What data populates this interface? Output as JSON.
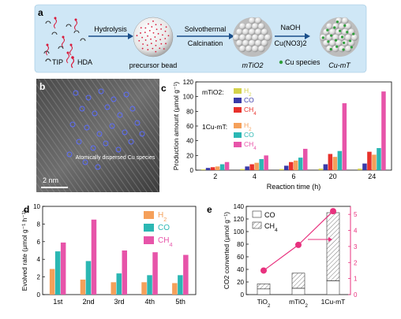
{
  "panel_a": {
    "letter": "a",
    "arrow1": "Hydrolysis",
    "arrow2_top": "Solvothermal",
    "arrow2_bottom": "Calcination",
    "arrow3_top": "NaOH",
    "arrow3_bottom": "Cu(NO3)2",
    "legend_tip": "TIP",
    "legend_hda": "HDA",
    "label_bead": "precursor bead",
    "label_mtio2": "mTiO2",
    "label_cu": "Cu species",
    "label_cumt": "Cu-mT",
    "colors": {
      "background": "#cfe7f6",
      "red_dots": "#d81b3c",
      "green_dots": "#2e9e3a"
    }
  },
  "panel_b": {
    "letter": "b",
    "annotation": "Atomically dispersed Cu species",
    "scale_bar": "2 nm"
  },
  "panel_c": {
    "letter": "c"
  },
  "panel_d": {
    "letter": "d"
  },
  "panel_e": {
    "letter": "e"
  },
  "chart_data": [
    {
      "id": "c",
      "type": "bar",
      "categories": [
        "2",
        "4",
        "6",
        "20",
        "24"
      ],
      "xlabel": "Reaction time (h)",
      "ylabel": "Production amount (μmol g⁻¹)",
      "ylim": [
        0,
        120
      ],
      "yticks": [
        0,
        20,
        40,
        60,
        80,
        100,
        120
      ],
      "legend_group1": "mTiO2:",
      "legend_group2": "1Cu-mT:",
      "series": [
        {
          "name": "H2",
          "group": "mTiO2",
          "color": "#d4d24a",
          "values": [
            1,
            1.5,
            1.5,
            2,
            2
          ]
        },
        {
          "name": "CO",
          "group": "mTiO2",
          "color": "#3a3aa8",
          "values": [
            3,
            5,
            6,
            8,
            9
          ]
        },
        {
          "name": "CH4",
          "group": "mTiO2",
          "color": "#e8312b",
          "values": [
            4,
            8,
            11,
            22,
            25
          ]
        },
        {
          "name": "H2",
          "group": "1Cu-mT",
          "color": "#f5a05a",
          "values": [
            5,
            10,
            13,
            18,
            21
          ]
        },
        {
          "name": "CO",
          "group": "1Cu-mT",
          "color": "#2bb7b3",
          "values": [
            8,
            15,
            17,
            26,
            30
          ]
        },
        {
          "name": "CH4",
          "group": "1Cu-mT",
          "color": "#e754a9",
          "values": [
            11,
            20,
            29,
            91,
            107
          ]
        }
      ]
    },
    {
      "id": "d",
      "type": "bar",
      "categories": [
        "1st",
        "2nd",
        "3rd",
        "4th",
        "5th"
      ],
      "ylabel": "Evolved rate (μmol g⁻¹ h⁻¹)",
      "ylim": [
        0,
        10
      ],
      "yticks": [
        0,
        2,
        4,
        6,
        8,
        10
      ],
      "series": [
        {
          "name": "H2",
          "color": "#f5a05a",
          "values": [
            2.9,
            1.7,
            1.4,
            1.4,
            1.3
          ]
        },
        {
          "name": "CO",
          "color": "#2bb7b3",
          "values": [
            4.9,
            3.8,
            2.4,
            2.2,
            2.2
          ]
        },
        {
          "name": "CH4",
          "color": "#e754a9",
          "values": [
            5.9,
            8.5,
            5.0,
            4.8,
            4.5
          ]
        }
      ]
    },
    {
      "id": "e",
      "type": "bar",
      "categories": [
        "TiO2",
        "mTiO2",
        "1Cu-mT"
      ],
      "ylabel": "CO2 converted (μmol g⁻¹)",
      "ylim": [
        0,
        140
      ],
      "yticks": [
        0,
        20,
        40,
        60,
        80,
        100,
        120,
        140
      ],
      "y2lim": [
        0,
        5.5
      ],
      "y2ticks": [
        0,
        1,
        2,
        3,
        4,
        5
      ],
      "series": [
        {
          "name": "CO",
          "pattern": "open",
          "values": [
            9,
            10,
            22
          ]
        },
        {
          "name": "CH4",
          "pattern": "hatched",
          "values": [
            8,
            24,
            108
          ]
        }
      ],
      "line": {
        "color": "#e8317e",
        "values": [
          1.5,
          3.1,
          5.2
        ]
      }
    }
  ]
}
